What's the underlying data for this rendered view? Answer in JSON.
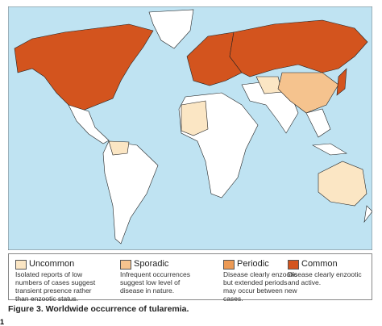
{
  "legend": {
    "items": [
      {
        "label": "Uncommon",
        "color": "#fbe6c4",
        "description": [
          "Isolated reports of low",
          "numbers of cases suggest",
          "transient presence rather",
          "than enzootic status."
        ]
      },
      {
        "label": "Sporadic",
        "color": "#f5c38e",
        "description": [
          "Infrequent occurrences",
          "suggest low level of",
          "disease in nature."
        ]
      },
      {
        "label": "Periodic",
        "color": "#ec9a55",
        "description": [
          "Disease clearly enzootic",
          "but extended periods",
          "may occur between new",
          "cases."
        ]
      },
      {
        "label": "Common",
        "color": "#d3541e",
        "description": [
          "Disease clearly enzootic",
          "and active."
        ]
      }
    ]
  },
  "caption": "Figure 3. Worldwide occurrence of tularemia.",
  "page_marker": "1"
}
